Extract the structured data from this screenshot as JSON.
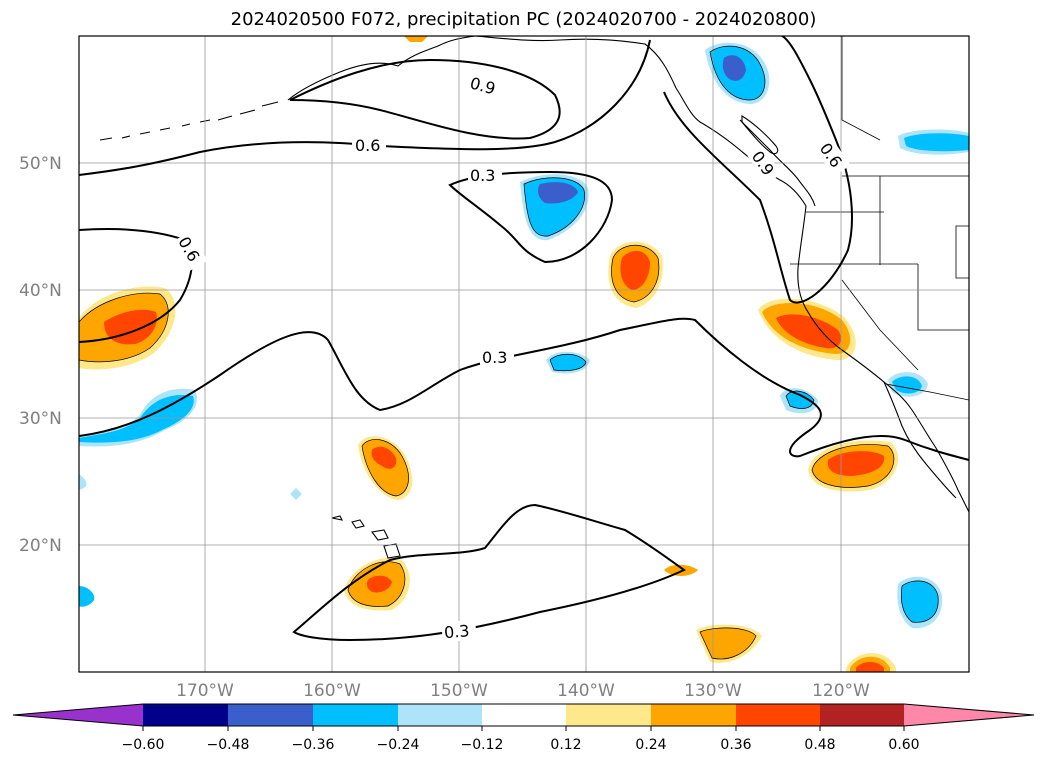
{
  "title": "2024020500 F072, precipitation PC (2024020700 - 2024020800)",
  "map": {
    "lat_labels": [
      "50°N",
      "40°N",
      "30°N",
      "20°N"
    ],
    "lon_labels": [
      "170°W",
      "160°W",
      "150°W",
      "140°W",
      "130°W",
      "120°W"
    ],
    "contour_labels": [
      "0.9",
      "0.6",
      "0.6",
      "0.6",
      "0.3",
      "0.3",
      "0.3",
      "0.9"
    ],
    "grid": true
  },
  "colorbar": {
    "ticks": [
      "−0.60",
      "−0.48",
      "−0.36",
      "−0.24",
      "−0.12",
      "0.12",
      "0.24",
      "0.36",
      "0.48",
      "0.60"
    ],
    "colors": {
      "lt_m060": "#9932cc",
      "m060_m048": "#00008b",
      "m048_m036": "#3a5fcd",
      "m036_m024": "#00bfff",
      "m024_m012": "#aee4fa",
      "m012_012": "#ffffff",
      "p012_p024": "#ffe88a",
      "p024_p036": "#ffa500",
      "p036_p048": "#ff4500",
      "p048_p060": "#b22222",
      "gt_p060": "#ff88aa"
    }
  }
}
